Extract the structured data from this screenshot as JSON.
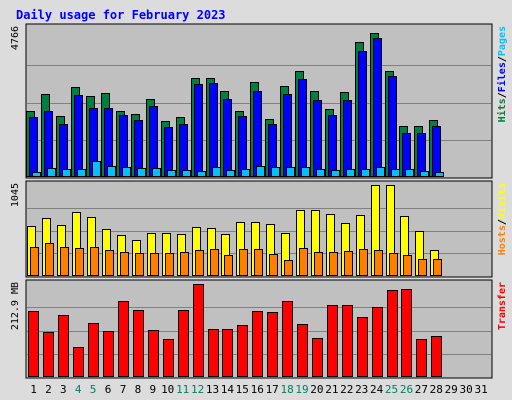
{
  "chart_data": {
    "type": "bar",
    "title": "Daily usage for February 2023",
    "days": [
      "1",
      "2",
      "3",
      "4",
      "5",
      "6",
      "7",
      "8",
      "9",
      "10",
      "11",
      "12",
      "13",
      "14",
      "15",
      "16",
      "17",
      "18",
      "19",
      "20",
      "21",
      "22",
      "23",
      "24",
      "25",
      "26",
      "27",
      "28",
      "29",
      "30",
      "31"
    ],
    "weekend_days": [
      "4",
      "5",
      "11",
      "12",
      "18",
      "19",
      "25",
      "26"
    ],
    "panels": [
      {
        "name": "hits-files-pages",
        "ymax_label": "4766",
        "ymax": 4766,
        "series": [
          {
            "name": "Hits",
            "color": "#008040",
            "values": [
              2120,
              2660,
              1950,
              2880,
              2600,
              2680,
              2100,
              2000,
              2500,
              1780,
              1910,
              3180,
              3180,
              2750,
              2110,
              3030,
              1870,
              2910,
              3390,
              2740,
              2180,
              2720,
              4310,
              4620,
              3390,
              1620,
              1620,
              1820
            ]
          },
          {
            "name": "Files",
            "color": "#0000ff",
            "values": [
              1920,
              2120,
              1700,
              2610,
              2220,
              2220,
              1980,
              1830,
              2280,
              1600,
              1710,
              2980,
              3020,
              2500,
              1940,
              2740,
              1690,
              2670,
              3150,
              2460,
              1990,
              2450,
              4030,
              4460,
              3230,
              1420,
              1420,
              1640
            ]
          },
          {
            "name": "Pages",
            "color": "#00c0ff",
            "values": [
              160,
              280,
              240,
              270,
              510,
              360,
              330,
              290,
              300,
              230,
              230,
              200,
              330,
              230,
              260,
              340,
              320,
              310,
              310,
              260,
              230,
              260,
              260,
              330,
              270,
              240,
              200,
              160
            ]
          }
        ]
      },
      {
        "name": "visits-hosts",
        "ymax_label": "1045",
        "ymax": 1045,
        "series": [
          {
            "name": "Visits",
            "color": "#ffff00",
            "values": [
              570,
              670,
              580,
              740,
              680,
              540,
              470,
              410,
              490,
              490,
              480,
              560,
              550,
              480,
              620,
              620,
              600,
              490,
              760,
              760,
              710,
              610,
              700,
              1040,
              1045,
              690,
              520,
              300
            ]
          },
          {
            "name": "Hosts",
            "color": "#ff8000",
            "values": [
              330,
              380,
              330,
              320,
              330,
              300,
              280,
              260,
              260,
              260,
              270,
              300,
              310,
              240,
              310,
              310,
              250,
              180,
              320,
              280,
              280,
              290,
              310,
              300,
              260,
              240,
              200,
              200
            ]
          }
        ]
      },
      {
        "name": "transfer",
        "ymax_label": "212.9 MB",
        "ymax": 212.9,
        "series": [
          {
            "name": "Transfer",
            "color": "#ff0000",
            "values": [
              150,
              102,
              143,
              69,
              123,
              105,
              174,
              154,
              108,
              88,
              153,
              212.9,
              110,
              110,
              118,
              151,
              148,
              173,
              121,
              89,
              164,
              165,
              137,
              160,
              199,
              201,
              87,
              94
            ]
          }
        ]
      }
    ],
    "right_labels": [
      [
        {
          "text": "Hits",
          "color": "#008040"
        },
        {
          "text": "/",
          "color": "#000000"
        },
        {
          "text": "Files",
          "color": "#0000ff"
        },
        {
          "text": "/",
          "color": "#000000"
        },
        {
          "text": "Pages",
          "color": "#00c0ff"
        }
      ],
      [
        {
          "text": "Hosts",
          "color": "#ff8000"
        },
        {
          "text": "/",
          "color": "#000000"
        },
        {
          "text": "Visits",
          "color": "#ffff00"
        }
      ],
      [
        {
          "text": "Transfer",
          "color": "#ff0000"
        }
      ]
    ],
    "grid": true
  },
  "colors": {
    "background": "#dcdcdc",
    "panel": "#c0c0c0",
    "title": "#0000ff",
    "weekday": "#000000",
    "weekend": "#00805c",
    "grid": "#808080"
  }
}
